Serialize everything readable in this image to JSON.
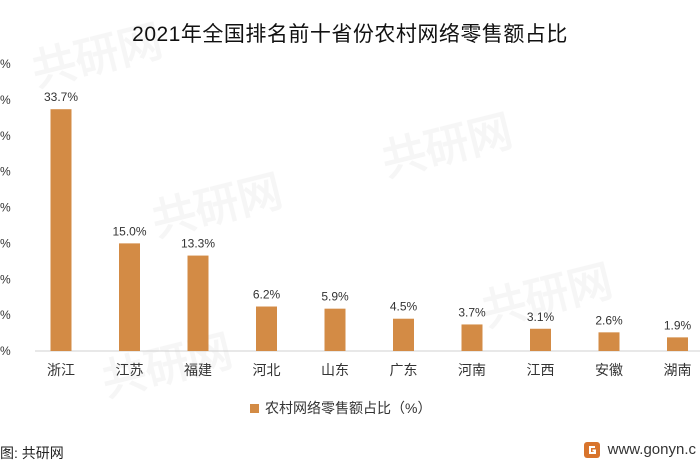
{
  "title": "2021年全国排名前十省份农村网络零售额占比",
  "colors": {
    "bar": "#d38b45",
    "axis": "#d0d0d0",
    "text": "#333333"
  },
  "legend": {
    "label": "农村网络零售额占比（%）",
    "placement": "bottom"
  },
  "axis_tick_labels": [
    "%",
    "%",
    "%",
    "%",
    "%",
    "%",
    "%",
    "%",
    "%"
  ],
  "source": "图: 共研网",
  "site": "www.gonyn.c",
  "watermark": "共研网",
  "chart_data": {
    "type": "bar",
    "categories": [
      "浙江",
      "江苏",
      "福建",
      "河北",
      "山东",
      "广东",
      "河南",
      "江西",
      "安徽",
      "湖南"
    ],
    "values": [
      33.7,
      15.0,
      13.3,
      6.2,
      5.9,
      4.5,
      3.7,
      3.1,
      2.6,
      1.9
    ],
    "value_labels": [
      "33.7%",
      "15.0%",
      "13.3%",
      "6.2%",
      "5.9%",
      "4.5%",
      "3.7%",
      "3.1%",
      "2.6%",
      "1.9%"
    ],
    "title": "2021年全国排名前十省份农村网络零售额占比",
    "xlabel": "",
    "ylabel": "",
    "ylim": [
      0,
      40
    ],
    "grid": false,
    "series": [
      {
        "name": "农村网络零售额占比（%）",
        "values": [
          33.7,
          15.0,
          13.3,
          6.2,
          5.9,
          4.5,
          3.7,
          3.1,
          2.6,
          1.9
        ]
      }
    ]
  }
}
